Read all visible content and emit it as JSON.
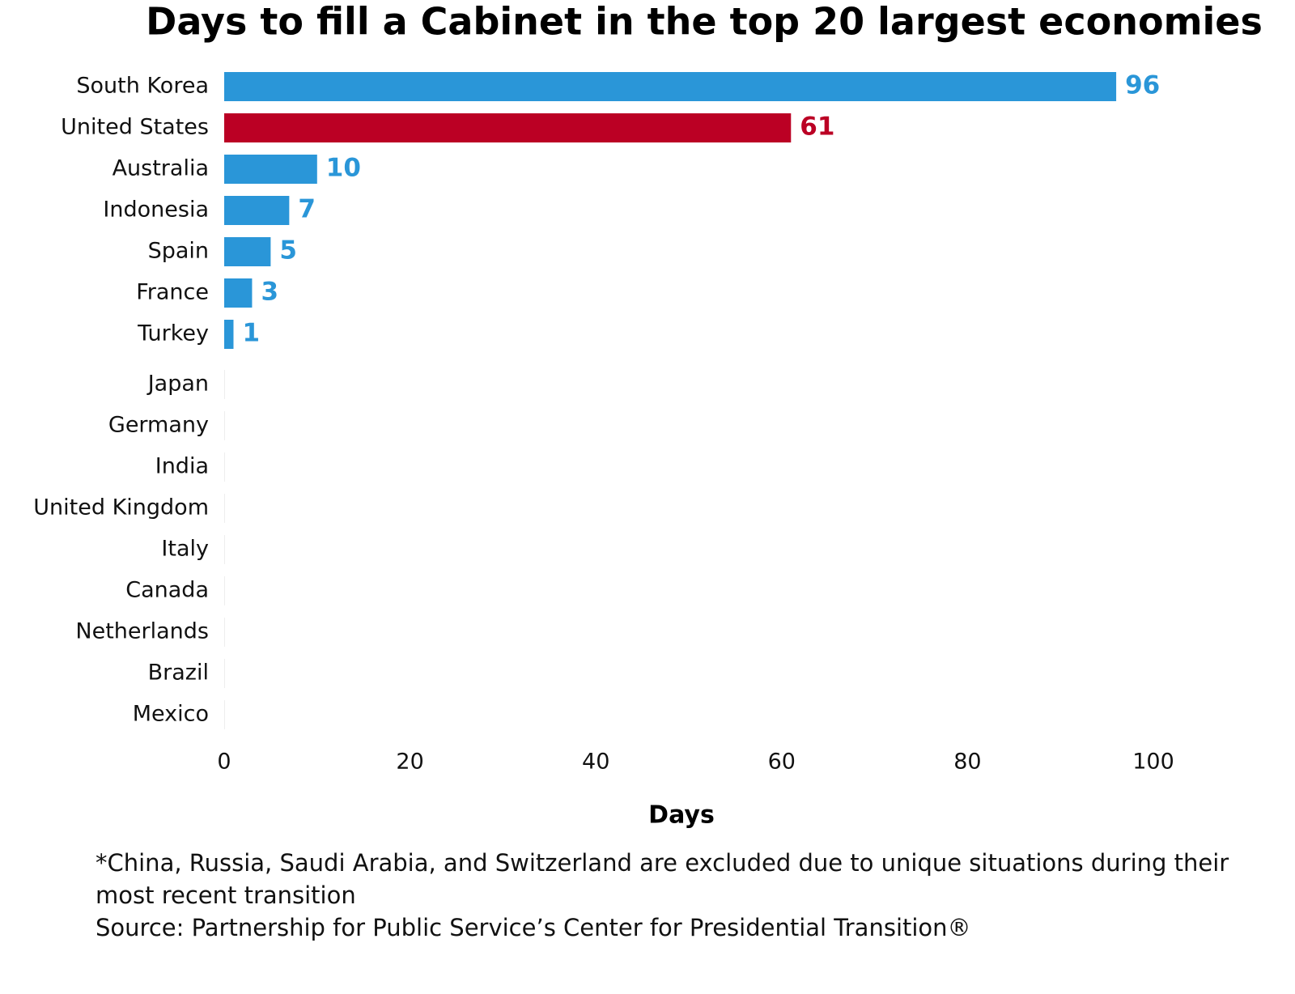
{
  "chart_data": {
    "type": "hbar",
    "title": "Days to fill a Cabinet in the top 20 largest economies",
    "categories": [
      "South Korea",
      "United States",
      "Australia",
      "Indonesia",
      "Spain",
      "France",
      "Turkey",
      "Japan",
      "Germany",
      "India",
      "United Kingdom",
      "Italy",
      "Canada",
      "Netherlands",
      "Brazil",
      "Mexico"
    ],
    "values": [
      96,
      61,
      10,
      7,
      5,
      3,
      1,
      0,
      0,
      0,
      0,
      0,
      0,
      0,
      0,
      0
    ],
    "value_labels": [
      "96",
      "61",
      "10",
      "7",
      "5",
      "3",
      "1",
      null,
      null,
      null,
      null,
      null,
      null,
      null,
      null,
      null
    ],
    "colors": [
      "#2a96d8",
      "#bb0024",
      "#2a96d8",
      "#2a96d8",
      "#2a96d8",
      "#2a96d8",
      "#2a96d8",
      "#2a96d8",
      "#2a96d8",
      "#2a96d8",
      "#2a96d8",
      "#2a96d8",
      "#2a96d8",
      "#2a96d8",
      "#2a96d8",
      "#2a96d8"
    ],
    "xlim": [
      0,
      100
    ],
    "xticks": [
      0,
      20,
      40,
      60,
      80,
      100
    ],
    "xlabel": "Days",
    "footnote": "*China, Russia, Saudi Arabia, and Switzerland are excluded due to unique situations during their most recent transition",
    "source": "Source: Partnership for Public Service’s Center for Presidential Transition®"
  }
}
